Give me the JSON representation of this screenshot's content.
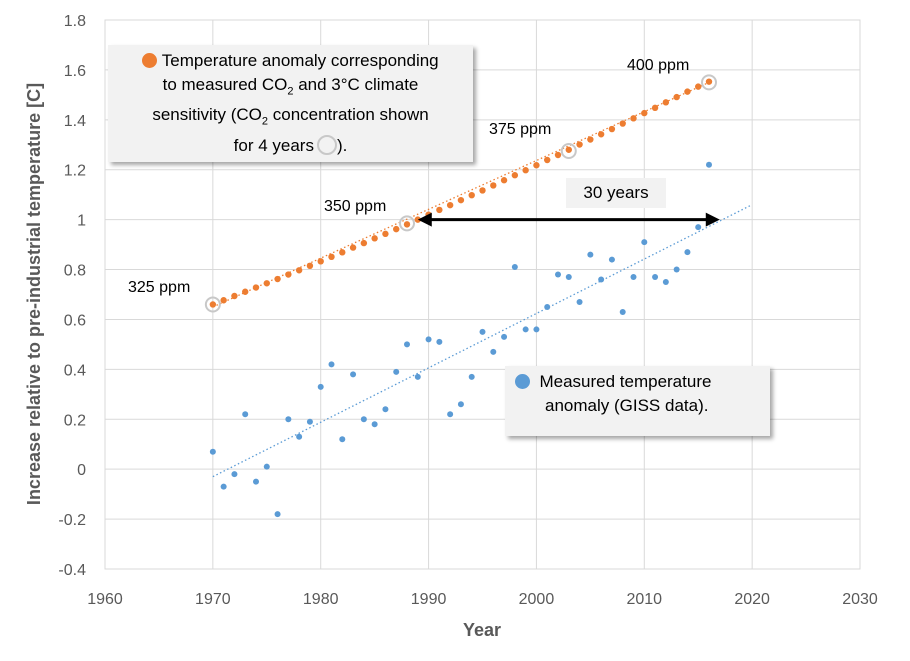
{
  "colors": {
    "orange": "#ed7d31",
    "blue": "#5b9bd5",
    "grid": "#d9d9d9",
    "axis_text": "#595959"
  },
  "chart_data": {
    "type": "scatter",
    "xlabel": "Year",
    "ylabel": "Increase relative to pre-industrial temperature [C]",
    "xlim": [
      1960,
      2030
    ],
    "ylim": [
      -0.4,
      1.8
    ],
    "xticks": [
      1960,
      1970,
      1980,
      1990,
      2000,
      2010,
      2020,
      2030
    ],
    "yticks": [
      "-0.4",
      "-0.2",
      "0",
      "0.2",
      "0.4",
      "0.6",
      "0.8",
      "1",
      "1.2",
      "1.4",
      "1.6",
      "1.8"
    ],
    "grid": true,
    "series": [
      {
        "name": "Temperature anomaly corresponding to measured CO2 and 3°C climate sensitivity",
        "color": "#ed7d31",
        "x": [
          1970,
          1971,
          1972,
          1973,
          1974,
          1975,
          1976,
          1977,
          1978,
          1979,
          1980,
          1981,
          1982,
          1983,
          1984,
          1985,
          1986,
          1987,
          1988,
          1989,
          1990,
          1991,
          1992,
          1993,
          1994,
          1995,
          1996,
          1997,
          1998,
          1999,
          2000,
          2001,
          2002,
          2003,
          2004,
          2005,
          2006,
          2007,
          2008,
          2009,
          2010,
          2011,
          2012,
          2013,
          2014,
          2015,
          2016
        ],
        "y": [
          0.66,
          0.677,
          0.694,
          0.711,
          0.728,
          0.745,
          0.762,
          0.78,
          0.797,
          0.815,
          0.833,
          0.851,
          0.869,
          0.888,
          0.906,
          0.925,
          0.943,
          0.962,
          0.981,
          1.0,
          1.02,
          1.039,
          1.058,
          1.078,
          1.098,
          1.117,
          1.137,
          1.158,
          1.178,
          1.198,
          1.218,
          1.239,
          1.259,
          1.28,
          1.301,
          1.321,
          1.342,
          1.363,
          1.385,
          1.406,
          1.427,
          1.448,
          1.47,
          1.491,
          1.513,
          1.533,
          1.553
        ],
        "trend": {
          "x": [
            1970,
            2016
          ],
          "y": [
            0.65,
            1.55
          ]
        }
      },
      {
        "name": "Measured temperature anomaly (GISS data)",
        "color": "#5b9bd5",
        "x": [
          1970,
          1971,
          1972,
          1973,
          1974,
          1975,
          1976,
          1977,
          1978,
          1979,
          1980,
          1981,
          1982,
          1983,
          1984,
          1985,
          1986,
          1987,
          1988,
          1989,
          1990,
          1991,
          1992,
          1993,
          1994,
          1995,
          1996,
          1997,
          1998,
          1999,
          2000,
          2001,
          2002,
          2003,
          2004,
          2005,
          2006,
          2007,
          2008,
          2009,
          2010,
          2011,
          2012,
          2013,
          2014,
          2015,
          2016
        ],
        "y": [
          0.07,
          -0.07,
          -0.02,
          0.22,
          -0.05,
          0.01,
          -0.18,
          0.2,
          0.13,
          0.19,
          0.33,
          0.42,
          0.12,
          0.38,
          0.2,
          0.18,
          0.24,
          0.39,
          0.5,
          0.37,
          0.52,
          0.51,
          0.22,
          0.26,
          0.37,
          0.55,
          0.47,
          0.53,
          0.81,
          0.56,
          0.56,
          0.65,
          0.78,
          0.77,
          0.67,
          0.86,
          0.76,
          0.84,
          0.63,
          0.77,
          0.91,
          0.77,
          0.75,
          0.8,
          0.87,
          0.97,
          1.22
        ],
        "trend": {
          "x": [
            1970,
            2020
          ],
          "y": [
            -0.03,
            1.06
          ]
        }
      }
    ],
    "annotations": {
      "ppm_labels": [
        {
          "text": "325 ppm",
          "x": 1970,
          "y": 0.66
        },
        {
          "text": "350 ppm",
          "x": 1988,
          "y": 0.985
        },
        {
          "text": "375 ppm",
          "x": 2003,
          "y": 1.275
        },
        {
          "text": "400 ppm",
          "x": 2016,
          "y": 1.55
        }
      ],
      "arrow": {
        "x": [
          1989,
          2017
        ],
        "y": 1.0,
        "text": "30 years"
      }
    }
  },
  "legend_orange": {
    "l1": "Temperature  anomaly corresponding",
    "l2a": "to measured  CO",
    "l2sub": "2",
    "l2b": " and 3°C climate",
    "l3a": "sensitivity (CO",
    "l3sub": "2",
    "l3b": " concentration  shown",
    "l4a": "for 4 years",
    "l4b": ")."
  },
  "legend_blue": {
    "l1": "Measured  temperature",
    "l2": "anomaly (GISS data)."
  }
}
